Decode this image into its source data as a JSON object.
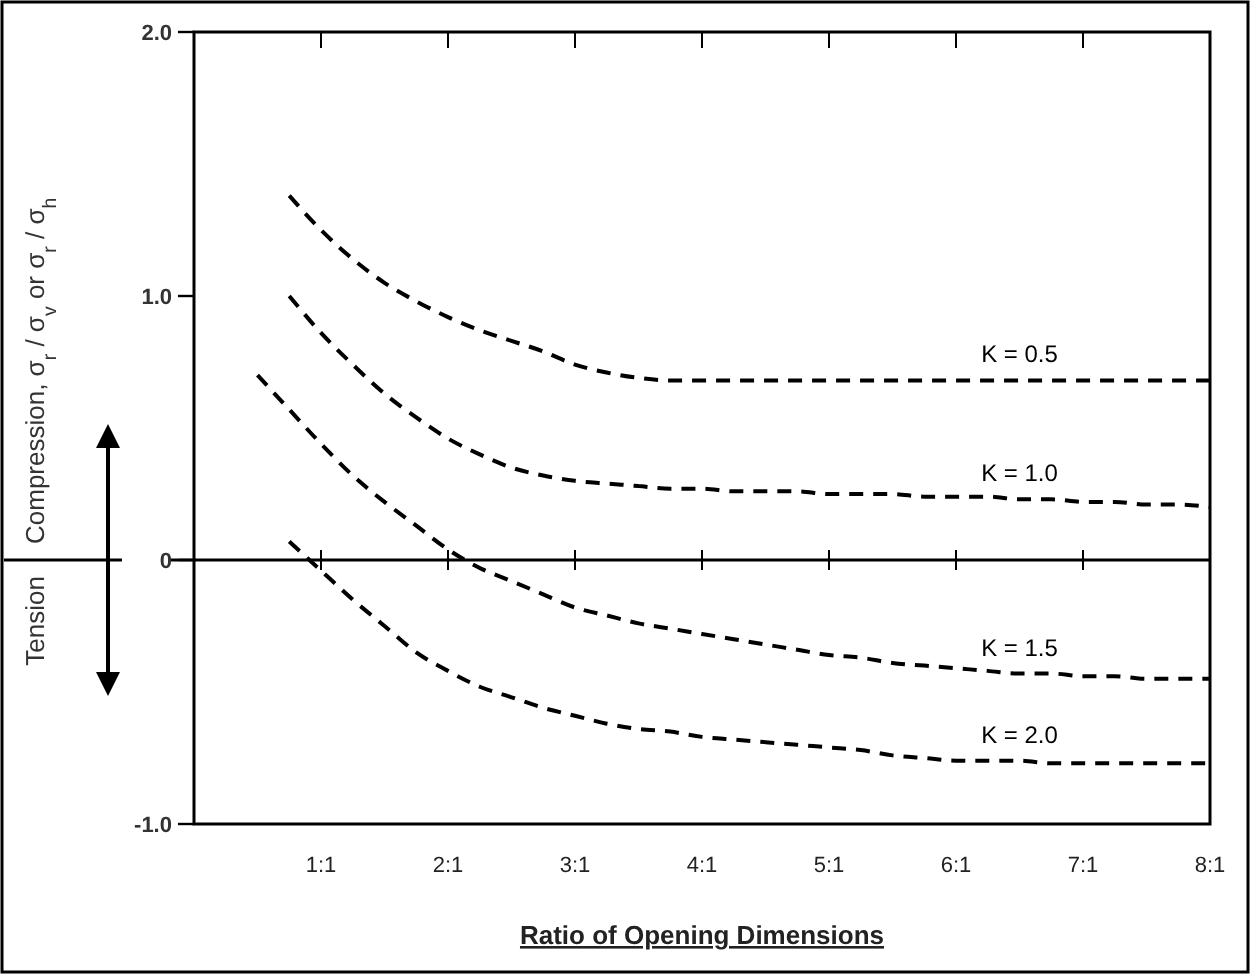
{
  "chart_data": {
    "type": "line",
    "xlabel": "Ratio of Opening Dimensions",
    "ylabel": "Compression, σ$_{r}$ / σ$_{v}$ or σ$_{r}$ / σ$_{h}$",
    "annotations": [
      "Tension"
    ],
    "categories": [
      null,
      null,
      null,
      null,
      "1:1",
      null,
      null,
      null,
      "2:1",
      null,
      null,
      null,
      "3:1",
      null,
      null,
      null,
      "4:1",
      null,
      null,
      null,
      "5:1",
      null,
      null,
      null,
      "6:1",
      null,
      null,
      null,
      "7:1",
      null,
      null,
      null,
      "8:1"
    ],
    "ylim": [
      -1,
      2
    ],
    "yticks": [
      {
        "value": -1,
        "label": "-1.0"
      },
      0,
      {
        "value": 1,
        "label": "1.0"
      },
      {
        "value": 2,
        "label": "2.0"
      }
    ],
    "ref_lines": [
      {
        "axis": "y",
        "value": 0,
        "label": null,
        "color": "#000000"
      }
    ],
    "line_style": "dashed",
    "marker": "none",
    "grid": false,
    "series": [
      {
        "name": "K = 0.5",
        "color": "#000000",
        "values": [
          null,
          null,
          null,
          1.38,
          1.25,
          1.14,
          1.05,
          0.98,
          0.92,
          0.87,
          0.83,
          0.79,
          0.74,
          0.71,
          0.69,
          0.68,
          0.68,
          0.68,
          0.68,
          0.68,
          0.68,
          0.68,
          0.68,
          0.68,
          0.68,
          0.68,
          0.68,
          0.68,
          0.68,
          0.68,
          0.68,
          0.68,
          0.68
        ]
      },
      {
        "name": "K = 1.0",
        "color": "#000000",
        "values": [
          null,
          null,
          null,
          1.0,
          0.86,
          0.74,
          0.63,
          0.54,
          0.46,
          0.4,
          0.35,
          0.32,
          0.3,
          0.29,
          0.28,
          0.27,
          0.27,
          0.26,
          0.26,
          0.26,
          0.25,
          0.25,
          0.25,
          0.24,
          0.24,
          0.24,
          0.23,
          0.23,
          0.22,
          0.22,
          0.21,
          0.21,
          0.2
        ]
      },
      {
        "name": "K = 1.5",
        "color": "#000000",
        "values": [
          null,
          null,
          0.7,
          0.57,
          0.44,
          0.32,
          0.22,
          0.13,
          0.04,
          -0.03,
          -0.08,
          -0.13,
          -0.18,
          -0.21,
          -0.24,
          -0.26,
          -0.28,
          -0.3,
          -0.32,
          -0.34,
          -0.36,
          -0.37,
          -0.39,
          -0.4,
          -0.41,
          -0.42,
          -0.43,
          -0.43,
          -0.44,
          -0.44,
          -0.45,
          -0.45,
          -0.45
        ]
      },
      {
        "name": "K = 2.0",
        "color": "#000000",
        "values": [
          null,
          null,
          null,
          0.07,
          -0.04,
          -0.15,
          -0.25,
          -0.35,
          -0.42,
          -0.48,
          -0.52,
          -0.56,
          -0.59,
          -0.62,
          -0.64,
          -0.65,
          -0.67,
          -0.68,
          -0.69,
          -0.7,
          -0.71,
          -0.72,
          -0.74,
          -0.75,
          -0.76,
          -0.76,
          -0.76,
          -0.77,
          -0.77,
          -0.77,
          -0.77,
          -0.77,
          -0.77
        ]
      }
    ]
  }
}
